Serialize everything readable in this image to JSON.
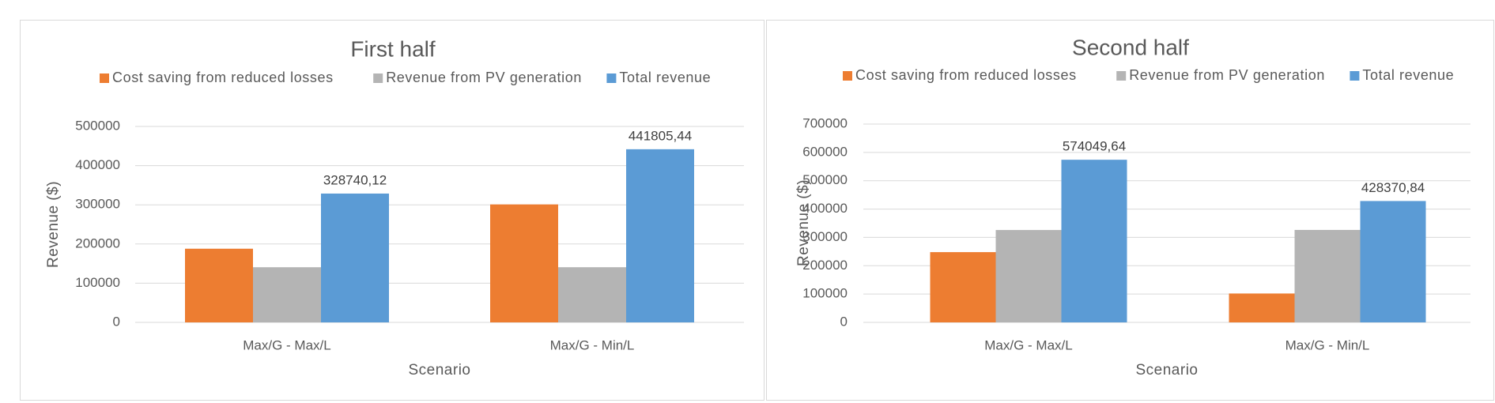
{
  "chart_data": [
    {
      "type": "bar",
      "title": "First half",
      "xlabel": "Scenario",
      "ylabel": "Revenue ($)",
      "ylim": [
        0,
        500000
      ],
      "yticks": [
        "0",
        "100000",
        "200000",
        "300000",
        "400000",
        "500000"
      ],
      "categories": [
        "Max/G - Max/L",
        "Max/G - Min/L"
      ],
      "series": [
        {
          "name": "Cost saving from reduced losses",
          "color": "#ED7D31",
          "values": [
            188000,
            301000
          ]
        },
        {
          "name": "Revenue from PV generation",
          "color": "#B4B4B4",
          "values": [
            140740.12,
            140805.44
          ]
        },
        {
          "name": "Total revenue",
          "color": "#5B9BD5",
          "values": [
            328740.12,
            441805.44
          ],
          "data_labels": [
            "328740,12",
            "441805,44"
          ]
        }
      ],
      "grid": true,
      "legend": "top"
    },
    {
      "type": "bar",
      "title": "Second half",
      "xlabel": "Scenario",
      "ylabel": "Revenue ($)",
      "ylim": [
        0,
        700000
      ],
      "yticks": [
        "0",
        "100000",
        "200000",
        "300000",
        "400000",
        "500000",
        "600000",
        "700000"
      ],
      "categories": [
        "Max/G - Max/L",
        "Max/G - Min/L"
      ],
      "series": [
        {
          "name": "Cost saving from reduced losses",
          "color": "#ED7D31",
          "values": [
            248000,
            102000
          ]
        },
        {
          "name": "Revenue from PV generation",
          "color": "#B4B4B4",
          "values": [
            326049.64,
            326370.84
          ]
        },
        {
          "name": "Total revenue",
          "color": "#5B9BD5",
          "values": [
            574049.64,
            428370.84
          ],
          "data_labels": [
            "574049,64",
            "428370,84"
          ]
        }
      ],
      "grid": true,
      "legend": "top"
    }
  ]
}
